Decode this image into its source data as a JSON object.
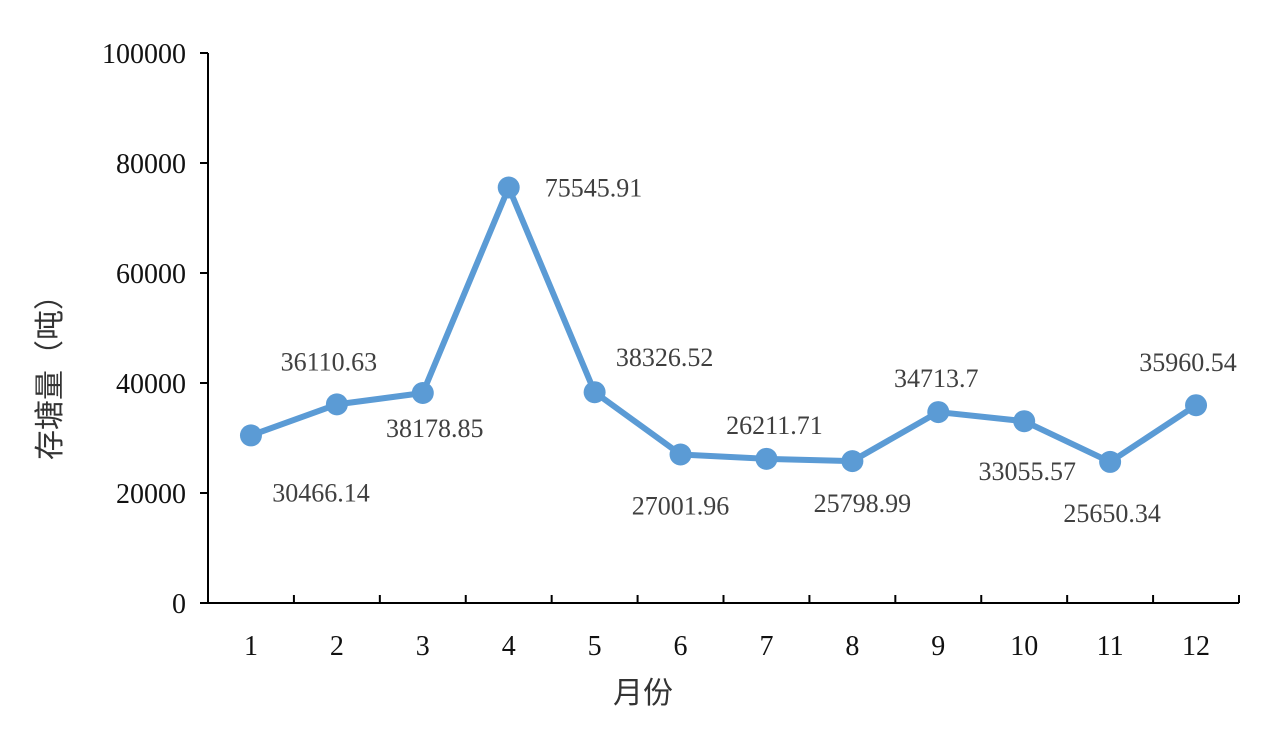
{
  "chart_data": {
    "type": "line",
    "xlabel": "月份",
    "ylabel": "存塘量（吨）",
    "ylim": [
      0,
      100000
    ],
    "yticks": [
      "0",
      "20000",
      "40000",
      "60000",
      "80000",
      "100000"
    ],
    "categories": [
      "1",
      "2",
      "3",
      "4",
      "5",
      "6",
      "7",
      "8",
      "9",
      "10",
      "11",
      "12"
    ],
    "values": [
      30466.14,
      36110.63,
      38178.85,
      75545.91,
      38326.52,
      27001.96,
      26211.71,
      25798.99,
      34713.7,
      33055.57,
      25650.34,
      35960.54
    ],
    "data_labels": [
      "30466.14",
      "36110.63",
      "38178.85",
      "75545.91",
      "38326.52",
      "27001.96",
      "26211.71",
      "25798.99",
      "34713.7",
      "33055.57",
      "25650.34",
      "35960.54"
    ],
    "grid": false,
    "legend": "none",
    "line_color": "#5B9BD5"
  }
}
